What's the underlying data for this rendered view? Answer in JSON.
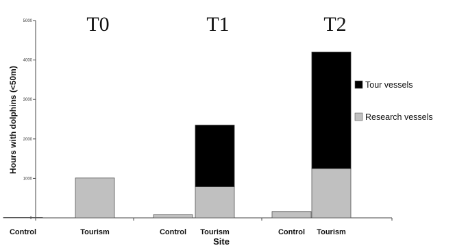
{
  "chart_data": {
    "type": "bar",
    "stacked": true,
    "xlabel": "Site",
    "ylabel": "Hours with dolphins (<50m)",
    "ylim": [
      0,
      5000
    ],
    "yticks": [
      0,
      1000,
      2000,
      3000,
      4000,
      5000
    ],
    "groups": [
      "T0",
      "T1",
      "T2"
    ],
    "categories": [
      "Control",
      "Tourism"
    ],
    "series": [
      {
        "name": "Research vessels",
        "color": "#c0c0c0",
        "values": {
          "T0": [
            10,
            1010
          ],
          "T1": [
            80,
            790
          ],
          "T2": [
            160,
            1250
          ]
        }
      },
      {
        "name": "Tour vessels",
        "color": "#000000",
        "values": {
          "T0": [
            0,
            0
          ],
          "T1": [
            0,
            1560
          ],
          "T2": [
            0,
            2950
          ]
        }
      }
    ],
    "legend_order": [
      "Tour vessels",
      "Research vessels"
    ],
    "legend_position": "right",
    "grid": false
  }
}
